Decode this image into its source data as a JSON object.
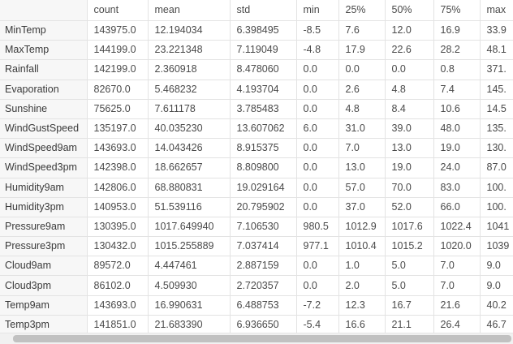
{
  "table": {
    "columns": [
      "count",
      "mean",
      "std",
      "min",
      "25%",
      "50%",
      "75%",
      "max"
    ],
    "rows": [
      {
        "label": "MinTemp",
        "values": [
          "143975.0",
          "12.194034",
          "6.398495",
          "-8.5",
          "7.6",
          "12.0",
          "16.9",
          "33.9"
        ]
      },
      {
        "label": "MaxTemp",
        "values": [
          "144199.0",
          "23.221348",
          "7.119049",
          "-4.8",
          "17.9",
          "22.6",
          "28.2",
          "48.1"
        ]
      },
      {
        "label": "Rainfall",
        "values": [
          "142199.0",
          "2.360918",
          "8.478060",
          "0.0",
          "0.0",
          "0.0",
          "0.8",
          "371."
        ]
      },
      {
        "label": "Evaporation",
        "values": [
          "82670.0",
          "5.468232",
          "4.193704",
          "0.0",
          "2.6",
          "4.8",
          "7.4",
          "145."
        ]
      },
      {
        "label": "Sunshine",
        "values": [
          "75625.0",
          "7.611178",
          "3.785483",
          "0.0",
          "4.8",
          "8.4",
          "10.6",
          "14.5"
        ]
      },
      {
        "label": "WindGustSpeed",
        "values": [
          "135197.0",
          "40.035230",
          "13.607062",
          "6.0",
          "31.0",
          "39.0",
          "48.0",
          "135."
        ]
      },
      {
        "label": "WindSpeed9am",
        "values": [
          "143693.0",
          "14.043426",
          "8.915375",
          "0.0",
          "7.0",
          "13.0",
          "19.0",
          "130."
        ]
      },
      {
        "label": "WindSpeed3pm",
        "values": [
          "142398.0",
          "18.662657",
          "8.809800",
          "0.0",
          "13.0",
          "19.0",
          "24.0",
          "87.0"
        ]
      },
      {
        "label": "Humidity9am",
        "values": [
          "142806.0",
          "68.880831",
          "19.029164",
          "0.0",
          "57.0",
          "70.0",
          "83.0",
          "100."
        ]
      },
      {
        "label": "Humidity3pm",
        "values": [
          "140953.0",
          "51.539116",
          "20.795902",
          "0.0",
          "37.0",
          "52.0",
          "66.0",
          "100."
        ]
      },
      {
        "label": "Pressure9am",
        "values": [
          "130395.0",
          "1017.649940",
          "7.106530",
          "980.5",
          "1012.9",
          "1017.6",
          "1022.4",
          "1041"
        ]
      },
      {
        "label": "Pressure3pm",
        "values": [
          "130432.0",
          "1015.255889",
          "7.037414",
          "977.1",
          "1010.4",
          "1015.2",
          "1020.0",
          "1039"
        ]
      },
      {
        "label": "Cloud9am",
        "values": [
          "89572.0",
          "4.447461",
          "2.887159",
          "0.0",
          "1.0",
          "5.0",
          "7.0",
          "9.0"
        ]
      },
      {
        "label": "Cloud3pm",
        "values": [
          "86102.0",
          "4.509930",
          "2.720357",
          "0.0",
          "2.0",
          "5.0",
          "7.0",
          "9.0"
        ]
      },
      {
        "label": "Temp9am",
        "values": [
          "143693.0",
          "16.990631",
          "6.488753",
          "-7.2",
          "12.3",
          "16.7",
          "21.6",
          "40.2"
        ]
      },
      {
        "label": "Temp3pm",
        "values": [
          "141851.0",
          "21.683390",
          "6.936650",
          "-5.4",
          "16.6",
          "21.1",
          "26.4",
          "46.7"
        ]
      }
    ]
  },
  "scrollbar": {
    "position_fraction": 0.03
  }
}
